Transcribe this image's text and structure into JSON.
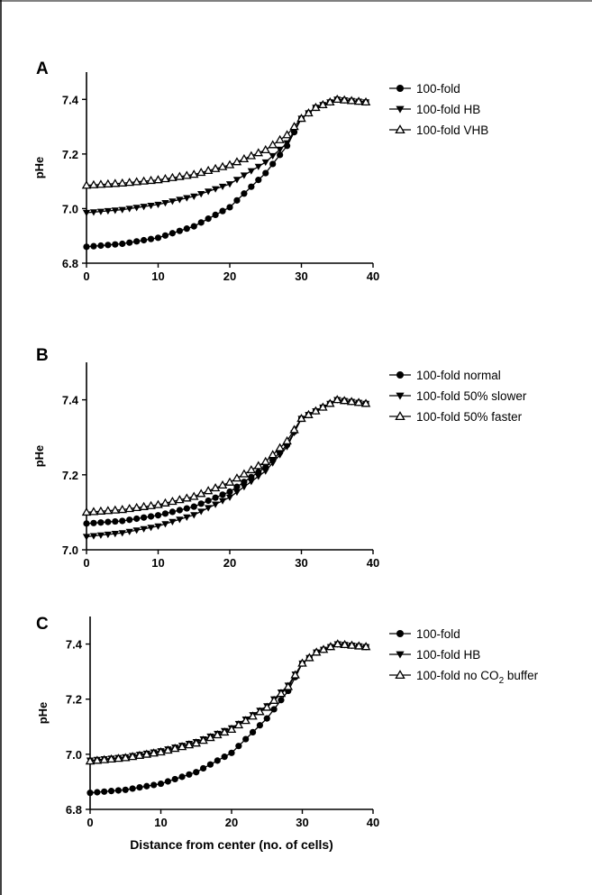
{
  "chart_data": [
    {
      "type": "line",
      "panel": "A",
      "xlabel": "",
      "ylabel": "pHe",
      "xlim": [
        0,
        40
      ],
      "ylim": [
        6.8,
        7.5
      ],
      "xticks": [
        "0",
        "10",
        "20",
        "30",
        "40"
      ],
      "yticks": [
        "6.8",
        "7.0",
        "7.2",
        "7.4"
      ],
      "legend_position": "right",
      "series": [
        {
          "name": "100-fold",
          "marker": "circle",
          "pts": [
            [
              0,
              6.86
            ],
            [
              5,
              6.871
            ],
            [
              10,
              6.893
            ],
            [
              15,
              6.935
            ],
            [
              20,
              7.005
            ],
            [
              25,
              7.13
            ],
            [
              28,
              7.23
            ],
            [
              30,
              7.33
            ],
            [
              32,
              7.37
            ],
            [
              35,
              7.4
            ],
            [
              39,
              7.39
            ]
          ]
        },
        {
          "name": "100-fold HB",
          "marker": "triangle-down",
          "pts": [
            [
              0,
              6.985
            ],
            [
              5,
              6.996
            ],
            [
              10,
              7.015
            ],
            [
              15,
              7.045
            ],
            [
              20,
              7.09
            ],
            [
              25,
              7.17
            ],
            [
              28,
              7.24
            ],
            [
              30,
              7.33
            ],
            [
              32,
              7.37
            ],
            [
              35,
              7.4
            ],
            [
              39,
              7.39
            ]
          ]
        },
        {
          "name": "100-fold VHB",
          "marker": "triangle-up-open",
          "pts": [
            [
              0,
              7.085
            ],
            [
              5,
              7.093
            ],
            [
              10,
              7.105
            ],
            [
              15,
              7.125
            ],
            [
              20,
              7.16
            ],
            [
              25,
              7.215
            ],
            [
              28,
              7.27
            ],
            [
              30,
              7.33
            ],
            [
              32,
              7.37
            ],
            [
              35,
              7.4
            ],
            [
              39,
              7.39
            ]
          ]
        }
      ]
    },
    {
      "type": "line",
      "panel": "B",
      "xlabel": "",
      "ylabel": "pHe",
      "xlim": [
        0,
        40
      ],
      "ylim": [
        7.0,
        7.5
      ],
      "xticks": [
        "0",
        "10",
        "20",
        "30",
        "40"
      ],
      "yticks": [
        "7.0",
        "7.2",
        "7.4"
      ],
      "legend_position": "right",
      "series": [
        {
          "name": "100-fold normal",
          "marker": "circle",
          "pts": [
            [
              0,
              7.07
            ],
            [
              5,
              7.077
            ],
            [
              10,
              7.092
            ],
            [
              15,
              7.115
            ],
            [
              20,
              7.155
            ],
            [
              25,
              7.22
            ],
            [
              28,
              7.28
            ],
            [
              30,
              7.35
            ],
            [
              32,
              7.37
            ],
            [
              35,
              7.4
            ],
            [
              39,
              7.39
            ]
          ]
        },
        {
          "name": "100-fold 50% slower",
          "marker": "triangle-down",
          "pts": [
            [
              0,
              7.035
            ],
            [
              5,
              7.045
            ],
            [
              10,
              7.063
            ],
            [
              15,
              7.093
            ],
            [
              20,
              7.14
            ],
            [
              25,
              7.21
            ],
            [
              28,
              7.275
            ],
            [
              30,
              7.35
            ],
            [
              32,
              7.37
            ],
            [
              35,
              7.4
            ],
            [
              39,
              7.39
            ]
          ]
        },
        {
          "name": "100-fold 50% faster",
          "marker": "triangle-up-open",
          "pts": [
            [
              0,
              7.1
            ],
            [
              5,
              7.107
            ],
            [
              10,
              7.12
            ],
            [
              15,
              7.142
            ],
            [
              20,
              7.18
            ],
            [
              25,
              7.235
            ],
            [
              28,
              7.29
            ],
            [
              30,
              7.35
            ],
            [
              32,
              7.37
            ],
            [
              35,
              7.4
            ],
            [
              39,
              7.39
            ]
          ]
        }
      ]
    },
    {
      "type": "line",
      "panel": "C",
      "xlabel": "Distance from center (no. of cells)",
      "ylabel": "pHe",
      "xlim": [
        0,
        40
      ],
      "ylim": [
        6.8,
        7.5
      ],
      "xticks": [
        "0",
        "10",
        "20",
        "30",
        "40"
      ],
      "yticks": [
        "6.8",
        "7.0",
        "7.2",
        "7.4"
      ],
      "legend_position": "right",
      "series": [
        {
          "name": "100-fold",
          "marker": "circle",
          "pts": [
            [
              0,
              6.86
            ],
            [
              5,
              6.871
            ],
            [
              10,
              6.893
            ],
            [
              15,
              6.935
            ],
            [
              20,
              7.005
            ],
            [
              25,
              7.13
            ],
            [
              28,
              7.23
            ],
            [
              30,
              7.33
            ],
            [
              32,
              7.37
            ],
            [
              35,
              7.4
            ],
            [
              39,
              7.39
            ]
          ]
        },
        {
          "name": "100-fold HB",
          "marker": "triangle-down",
          "pts": [
            [
              0,
              6.978
            ],
            [
              5,
              6.99
            ],
            [
              10,
              7.012
            ],
            [
              15,
              7.045
            ],
            [
              20,
              7.095
            ],
            [
              25,
              7.175
            ],
            [
              28,
              7.25
            ],
            [
              30,
              7.33
            ],
            [
              32,
              7.37
            ],
            [
              35,
              7.4
            ],
            [
              39,
              7.39
            ]
          ]
        },
        {
          "name": "100-fold no CO2 buffer",
          "name_parts": [
            "100-fold no CO",
            "2",
            " buffer"
          ],
          "marker": "triangle-up-open",
          "pts": [
            [
              0,
              6.975
            ],
            [
              5,
              6.987
            ],
            [
              10,
              7.008
            ],
            [
              15,
              7.04
            ],
            [
              20,
              7.09
            ],
            [
              25,
              7.17
            ],
            [
              28,
              7.245
            ],
            [
              30,
              7.33
            ],
            [
              32,
              7.37
            ],
            [
              35,
              7.4
            ],
            [
              39,
              7.39
            ]
          ]
        }
      ]
    }
  ]
}
